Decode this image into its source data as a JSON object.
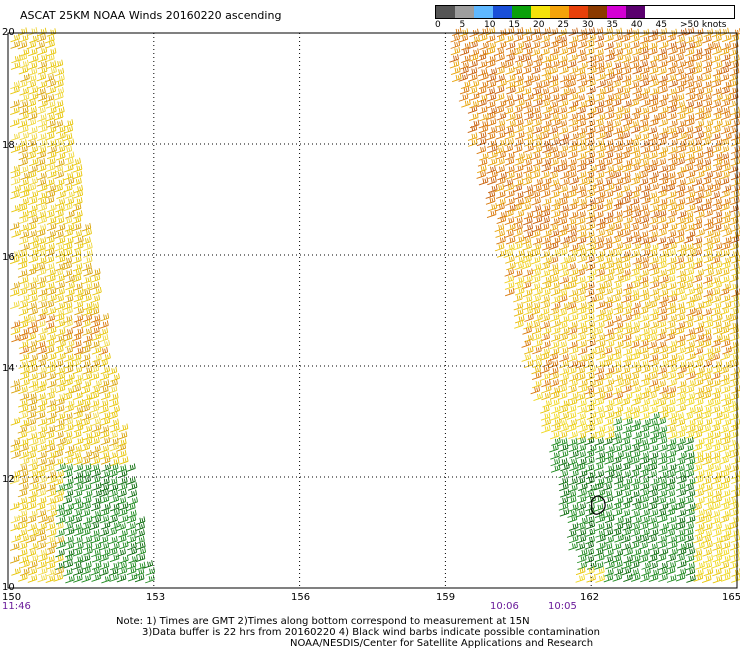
{
  "title": "ASCAT 25KM NOAA Winds 20160220 ascending",
  "map": {
    "lon_range": [
      150,
      165
    ],
    "lat_range": [
      10,
      20
    ],
    "grid": true,
    "x_ticks": [
      "150",
      "153",
      "156",
      "159",
      "162",
      "165"
    ],
    "y_ticks": [
      "20",
      "18",
      "16",
      "14",
      "12",
      "10"
    ],
    "time_labels": [
      "11:46",
      "10:06",
      "10:05"
    ]
  },
  "legend": {
    "labels": [
      "0",
      "5",
      "10",
      "15",
      "20",
      "25",
      "30",
      "35",
      "40",
      "45",
      ">50 knots"
    ],
    "colors": [
      "#555555",
      "#9e9e9e",
      "#5fb8ff",
      "#1a4fd8",
      "#0aa10a",
      "#f4e20a",
      "#f4a30a",
      "#e8400a",
      "#8b3a00",
      "#d400d4",
      "#5a006e"
    ]
  },
  "notes": [
    "Note: 1) Times are GMT 2)Times along bottom correspond to measurement at 15N",
    "3)Data buffer is 22 hrs from 20160220 4) Black wind barbs indicate possible contamination",
    "NOAA/NESDIS/Center for Satellite Applications and Research"
  ]
}
